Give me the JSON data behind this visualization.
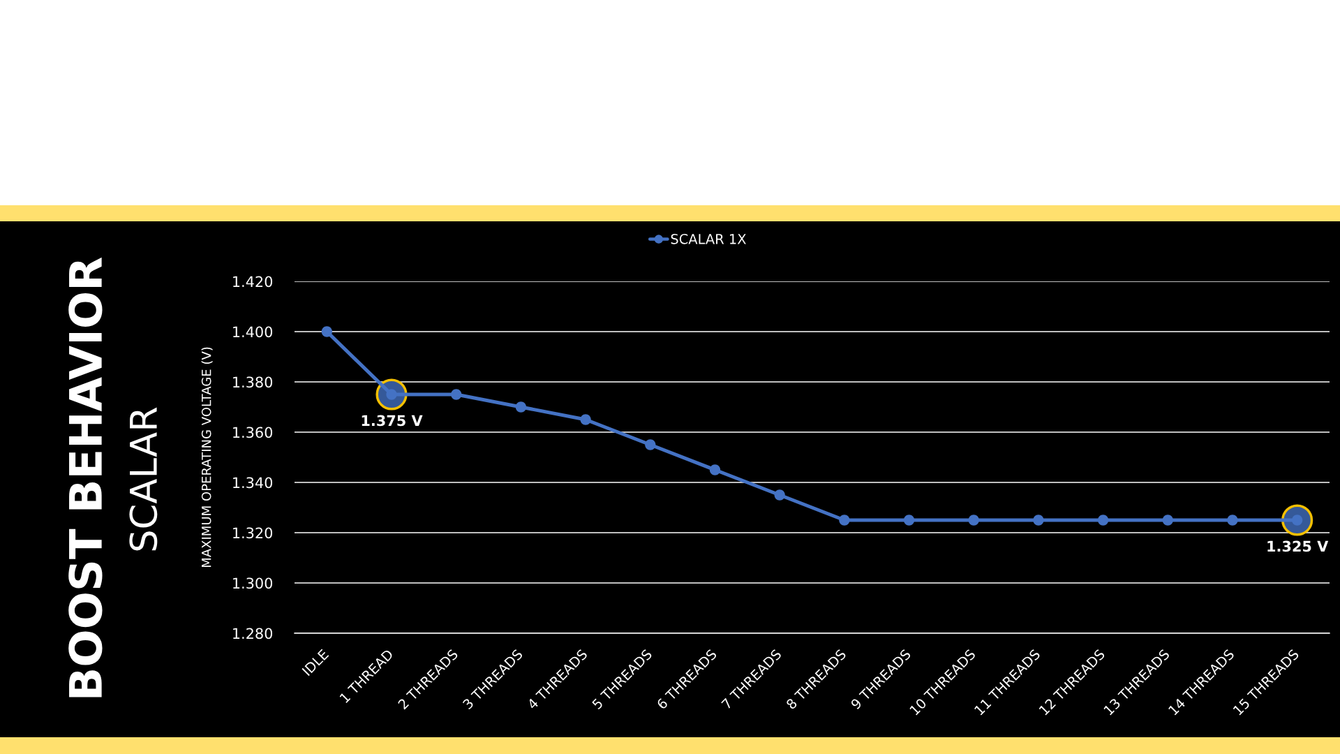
{
  "chart_data": {
    "type": "line",
    "title": "BOOST BEHAVIOR",
    "subtitle": "SCALAR",
    "ylabel": "MAXIMUM OPERATING VOLTAGE (V)",
    "categories": [
      "IDLE",
      "1 THREAD",
      "2 THREADS",
      "3 THREADS",
      "4 THREADS",
      "5 THREADS",
      "6 THREADS",
      "7 THREADS",
      "8 THREADS",
      "9 THREADS",
      "10 THREADS",
      "11 THREADS",
      "12 THREADS",
      "13 THREADS",
      "14 THREADS",
      "15 THREADS"
    ],
    "series": [
      {
        "name": "SCALAR 1X",
        "color": "#4472c4",
        "values": [
          1.4,
          1.375,
          1.375,
          1.37,
          1.365,
          1.355,
          1.345,
          1.335,
          1.325,
          1.325,
          1.325,
          1.325,
          1.325,
          1.325,
          1.325,
          1.325
        ],
        "value_labels": [
          null,
          "1.375 V",
          null,
          null,
          null,
          null,
          null,
          null,
          null,
          null,
          null,
          null,
          null,
          null,
          null,
          "1.325 V"
        ]
      }
    ],
    "ylim": [
      1.28,
      1.42
    ],
    "yticks": [
      {
        "value": 1.28,
        "label": "1.280"
      },
      {
        "value": 1.3,
        "label": "1.300"
      },
      {
        "value": 1.32,
        "label": "1.320"
      },
      {
        "value": 1.34,
        "label": "1.340"
      },
      {
        "value": 1.36,
        "label": "1.360"
      },
      {
        "value": 1.38,
        "label": "1.380"
      },
      {
        "value": 1.4,
        "label": "1.400"
      },
      {
        "value": 1.42,
        "label": "1.420"
      }
    ],
    "grid": "y",
    "legend": "top",
    "marker": "circle",
    "line_style": "solid"
  }
}
